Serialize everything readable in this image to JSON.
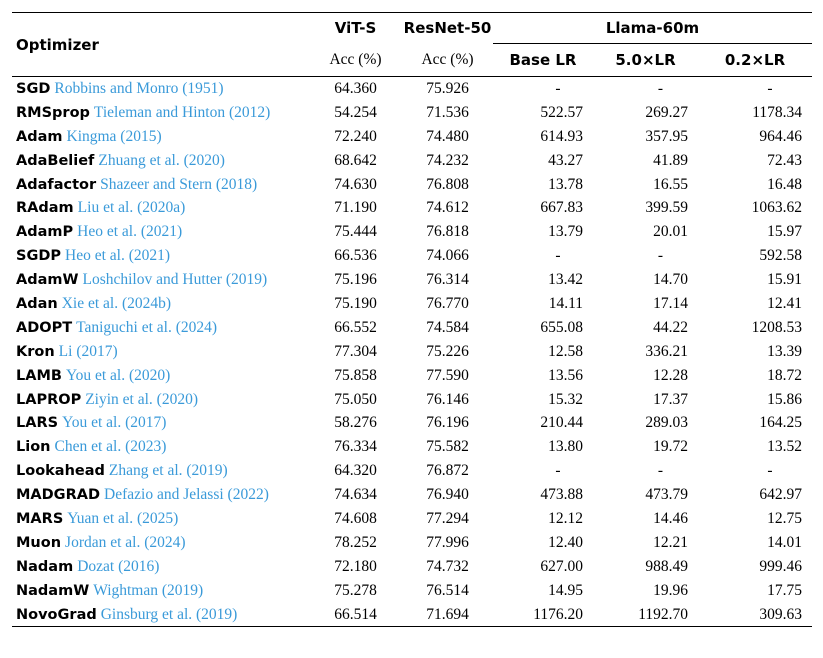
{
  "header": {
    "optimizer": "Optimizer",
    "vit": "ViT-S",
    "resnet": "ResNet-50",
    "llama": "Llama-60m",
    "acc": "Acc (%)",
    "base_lr": "Base LR",
    "lr_5": "5.0×LR",
    "lr_02": "0.2×LR"
  },
  "rows": [
    {
      "name": "SGD",
      "cite": "Robbins and Monro (1951)",
      "vit": "64.360",
      "resnet": "75.926",
      "base": "-",
      "x5": "-",
      "x02": "-"
    },
    {
      "name": "RMSprop",
      "cite": "Tieleman and Hinton (2012)",
      "vit": "54.254",
      "resnet": "71.536",
      "base": "522.57",
      "x5": "269.27",
      "x02": "1178.34"
    },
    {
      "name": "Adam",
      "cite": "Kingma (2015)",
      "vit": "72.240",
      "resnet": "74.480",
      "base": "614.93",
      "x5": "357.95",
      "x02": "964.46"
    },
    {
      "name": "AdaBelief",
      "cite": "Zhuang et al. (2020)",
      "vit": "68.642",
      "resnet": "74.232",
      "base": "43.27",
      "x5": "41.89",
      "x02": "72.43"
    },
    {
      "name": "Adafactor",
      "cite": "Shazeer and Stern (2018)",
      "vit": "74.630",
      "resnet": "76.808",
      "base": "13.78",
      "x5": "16.55",
      "x02": "16.48"
    },
    {
      "name": "RAdam",
      "cite": "Liu et al. (2020a)",
      "vit": "71.190",
      "resnet": "74.612",
      "base": "667.83",
      "x5": "399.59",
      "x02": "1063.62"
    },
    {
      "name": "AdamP",
      "cite": "Heo et al. (2021)",
      "vit": "75.444",
      "resnet": "76.818",
      "base": "13.79",
      "x5": "20.01",
      "x02": "15.97"
    },
    {
      "name": "SGDP",
      "cite": "Heo et al. (2021)",
      "vit": "66.536",
      "resnet": "74.066",
      "base": "-",
      "x5": "-",
      "x02": "592.58"
    },
    {
      "name": "AdamW",
      "cite": "Loshchilov and Hutter (2019)",
      "vit": "75.196",
      "resnet": "76.314",
      "base": "13.42",
      "x5": "14.70",
      "x02": "15.91"
    },
    {
      "name": "Adan",
      "cite": "Xie et al. (2024b)",
      "vit": "75.190",
      "resnet": "76.770",
      "base": "14.11",
      "x5": "17.14",
      "x02": "12.41"
    },
    {
      "name": "ADOPT",
      "cite": "Taniguchi et al. (2024)",
      "vit": "66.552",
      "resnet": "74.584",
      "base": "655.08",
      "x5": "44.22",
      "x02": "1208.53"
    },
    {
      "name": "Kron",
      "cite": "Li (2017)",
      "vit": "77.304",
      "resnet": "75.226",
      "base": "12.58",
      "x5": "336.21",
      "x02": "13.39"
    },
    {
      "name": "LAMB",
      "cite": "You et al. (2020)",
      "vit": "75.858",
      "resnet": "77.590",
      "base": "13.56",
      "x5": "12.28",
      "x02": "18.72"
    },
    {
      "name": "LAPROP",
      "cite": "Ziyin et al. (2020)",
      "vit": "75.050",
      "resnet": "76.146",
      "base": "15.32",
      "x5": "17.37",
      "x02": "15.86"
    },
    {
      "name": "LARS",
      "cite": "You et al. (2017)",
      "vit": "58.276",
      "resnet": "76.196",
      "base": "210.44",
      "x5": "289.03",
      "x02": "164.25"
    },
    {
      "name": "Lion",
      "cite": "Chen et al. (2023)",
      "vit": "76.334",
      "resnet": "75.582",
      "base": "13.80",
      "x5": "19.72",
      "x02": "13.52"
    },
    {
      "name": "Lookahead",
      "cite": "Zhang et al. (2019)",
      "vit": "64.320",
      "resnet": "76.872",
      "base": "-",
      "x5": "-",
      "x02": "-"
    },
    {
      "name": "MADGRAD",
      "cite": "Defazio and Jelassi (2022)",
      "vit": "74.634",
      "resnet": "76.940",
      "base": "473.88",
      "x5": "473.79",
      "x02": "642.97"
    },
    {
      "name": "MARS",
      "cite": "Yuan et al. (2025)",
      "vit": "74.608",
      "resnet": "77.294",
      "base": "12.12",
      "x5": "14.46",
      "x02": "12.75"
    },
    {
      "name": "Muon",
      "cite": "Jordan et al. (2024)",
      "vit": "78.252",
      "resnet": "77.996",
      "base": "12.40",
      "x5": "12.21",
      "x02": "14.01"
    },
    {
      "name": "Nadam",
      "cite": "Dozat (2016)",
      "vit": "72.180",
      "resnet": "74.732",
      "base": "627.00",
      "x5": "988.49",
      "x02": "999.46"
    },
    {
      "name": "NadamW",
      "cite": "Wightman (2019)",
      "vit": "75.278",
      "resnet": "76.514",
      "base": "14.95",
      "x5": "19.96",
      "x02": "17.75"
    },
    {
      "name": "NovoGrad",
      "cite": "Ginsburg et al. (2019)",
      "vit": "66.514",
      "resnet": "71.694",
      "base": "1176.20",
      "x5": "1192.70",
      "x02": "309.63"
    }
  ]
}
